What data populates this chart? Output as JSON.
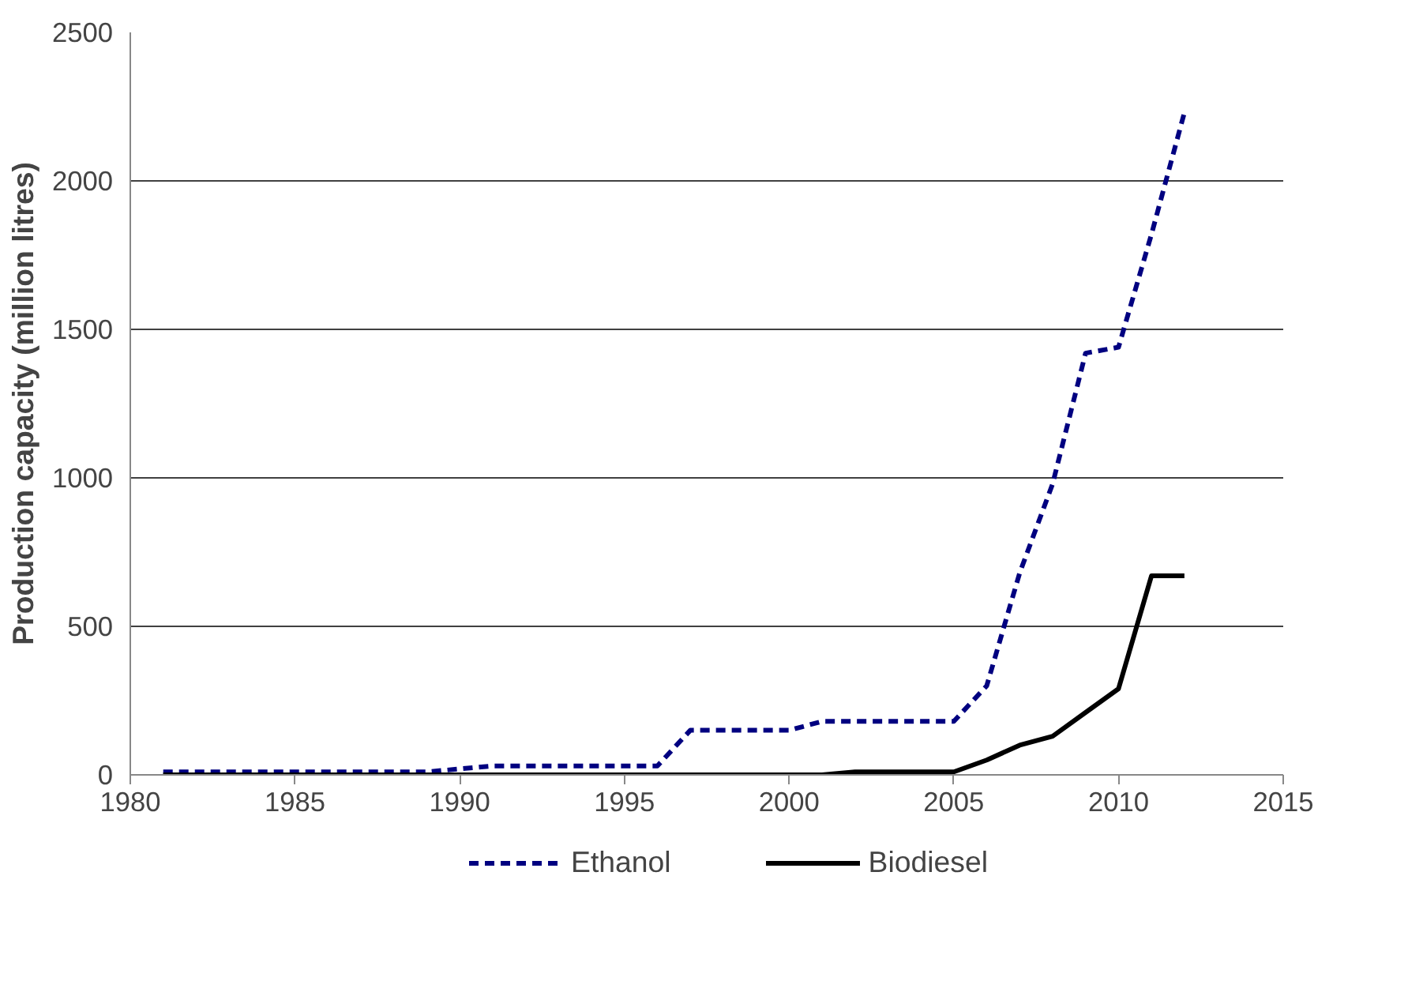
{
  "chart_data": {
    "type": "line",
    "ylabel": "Production capacity (million litres)",
    "x": [
      1981,
      1982,
      1983,
      1984,
      1985,
      1986,
      1987,
      1988,
      1989,
      1990,
      1991,
      1992,
      1993,
      1994,
      1995,
      1996,
      1997,
      1998,
      1999,
      2000,
      2001,
      2002,
      2003,
      2004,
      2005,
      2006,
      2007,
      2008,
      2009,
      2010,
      2011,
      2012
    ],
    "series": [
      {
        "name": "Ethanol",
        "color": "#000080",
        "line_style": "dashed",
        "values": [
          10,
          10,
          10,
          10,
          10,
          10,
          10,
          10,
          10,
          20,
          30,
          30,
          30,
          30,
          30,
          30,
          150,
          150,
          150,
          150,
          180,
          180,
          180,
          180,
          180,
          300,
          680,
          980,
          1420,
          1440,
          1820,
          2230
        ]
      },
      {
        "name": "Biodiesel",
        "color": "#000000",
        "line_style": "solid",
        "values": [
          0,
          0,
          0,
          0,
          0,
          0,
          0,
          0,
          0,
          0,
          0,
          0,
          0,
          0,
          0,
          0,
          0,
          0,
          0,
          0,
          0,
          10,
          10,
          10,
          10,
          50,
          100,
          130,
          210,
          290,
          670,
          670
        ]
      }
    ],
    "xlim": [
      1980,
      2015
    ],
    "xticks": [
      1980,
      1985,
      1990,
      1995,
      2000,
      2005,
      2010,
      2015
    ],
    "ylim": [
      0,
      2500
    ],
    "yticks": [
      0,
      500,
      1000,
      1500,
      2000,
      2500
    ],
    "grid": "y",
    "legend": "bottom",
    "marker": "none"
  }
}
